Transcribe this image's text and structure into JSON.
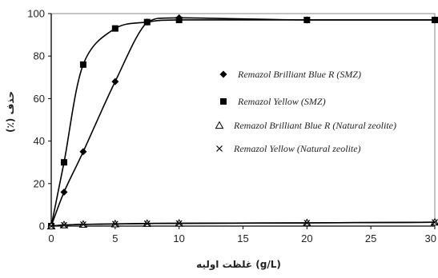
{
  "chart_data": {
    "type": "line",
    "title": "",
    "xlabel": "(g/L) غلظت اولیه",
    "ylabel": "حذف (٪)",
    "xlim": [
      0,
      30
    ],
    "ylim": [
      0,
      100
    ],
    "x_ticks": [
      "0",
      "5",
      "10",
      "15",
      "20",
      "25",
      "30"
    ],
    "y_ticks": [
      "0",
      "20",
      "40",
      "60",
      "80",
      "100"
    ],
    "grid": false,
    "legend_placement": "center-right",
    "series": [
      {
        "name": "Remazol Brilliant Blue R (SMZ)",
        "marker": "diamond",
        "color": "#000000",
        "x": [
          0,
          1,
          2.5,
          5,
          7.5,
          10,
          20,
          30
        ],
        "y": [
          0,
          16,
          35,
          68,
          96,
          98,
          97,
          97
        ]
      },
      {
        "name": "Remazol Yellow (SMZ)",
        "marker": "square",
        "color": "#000000",
        "x": [
          0,
          1,
          2.5,
          5,
          7.5,
          10,
          20,
          30
        ],
        "y": [
          0,
          30,
          76,
          93,
          96,
          97,
          97,
          97
        ]
      },
      {
        "name": "Remazol Brilliant Blue R (Natural zeolite)",
        "marker": "triangle",
        "color": "#000000",
        "x": [
          0,
          1,
          2.5,
          5,
          7.5,
          10,
          20,
          30
        ],
        "y": [
          0,
          0.5,
          0.8,
          1,
          1.2,
          1.3,
          1.5,
          1.8
        ]
      },
      {
        "name": "Remazol Yellow (Natural zeolite)",
        "marker": "x",
        "color": "#000000",
        "x": [
          0,
          1,
          2.5,
          5,
          7.5,
          10,
          20,
          30
        ],
        "y": [
          0,
          0.5,
          0.8,
          1,
          1.2,
          1.3,
          1.5,
          1.8
        ]
      }
    ]
  }
}
